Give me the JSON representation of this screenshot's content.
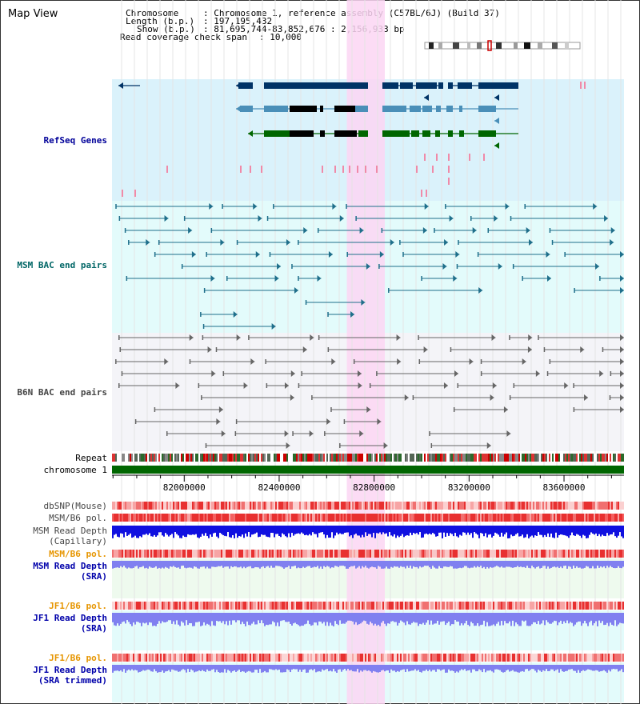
{
  "title": "Map View",
  "header": {
    "chromosome_key": "Chromosome",
    "chromosome_val": ": Chromosome 1, reference assembly (C57BL/6J) (Build 37)",
    "length_key": "Length (b.p.)",
    "length_val": ": 197,195,432",
    "show_key": "Show (b.p.)",
    "show_val": ": 81,695,744-83,852,676 : 2,156,933 bp",
    "coverage_key": "Read coverage check span",
    "coverage_val": ": 10,000"
  },
  "tracks": {
    "refseq": "RefSeq Genes",
    "msm_bac": "MSM BAC end pairs",
    "b6n_bac": "B6N BAC end pairs",
    "repeat": "Repeat",
    "chromosome": "chromosome 1",
    "dbsnp": "dbSNP(Mouse)",
    "msm_b6_pol": "MSM/B6 pol.",
    "msm_depth_cap_1": "MSM Read Depth",
    "msm_depth_cap_2": "(Capillary)",
    "msm_b6_pol2": "MSM/B6 pol.",
    "msm_depth_sra_1": "MSM Read Depth",
    "msm_depth_sra_2": "(SRA)",
    "jf1_b6_pol": "JF1/B6 pol.",
    "jf1_depth_sra_1": "JF1 Read Depth",
    "jf1_depth_sra_2": "(SRA)",
    "jf1_b6_pol2": "JF1/B6 pol.",
    "jf1_depth_trim_1": "JF1 Read Depth",
    "jf1_depth_trim_2": "(SRA trimmed)"
  },
  "axis": {
    "range_bp": [
      81695744,
      83852676
    ],
    "ticks": [
      "82000000",
      "82400000",
      "82800000",
      "83200000",
      "83600000"
    ]
  },
  "highlight": {
    "start_bp": 82685000,
    "end_bp": 82845000
  },
  "colors": {
    "refseq_bg": "#daf2fb",
    "msm_bg": "#e3fbfb",
    "b6n_bg": "#f4f4f8",
    "highlight": "#fbd6f3",
    "gene_navy": "#003366",
    "gene_steel": "#4a8fb8",
    "gene_green": "#006600",
    "msm_pair": "#1f6f8b",
    "b6n_pair": "#666666",
    "chromosome_bar": "#006600",
    "depth_blue": "#1010e0",
    "depth_lavender": "#8080f0"
  }
}
